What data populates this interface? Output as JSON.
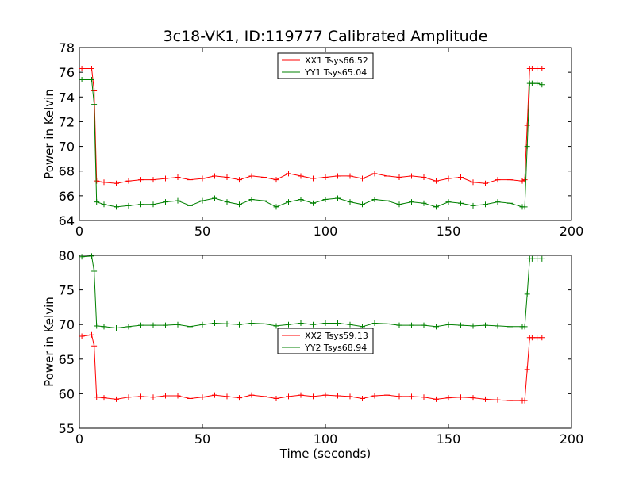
{
  "title": "3c18-VK1, ID:119777 Calibrated Amplitude",
  "colors": {
    "red": "#ff0000",
    "green": "#008000"
  },
  "chart_data": [
    {
      "type": "line",
      "ylabel": "Power in Kelvin",
      "xlabel": "",
      "xlim": [
        0,
        200
      ],
      "ylim": [
        64,
        78
      ],
      "xticks": [
        0,
        50,
        100,
        150,
        200
      ],
      "yticks": [
        64,
        66,
        68,
        70,
        72,
        74,
        76,
        78
      ],
      "legend_position": "top-center",
      "series": [
        {
          "name": "XX1 Tsys66.52",
          "color": "#ff0000",
          "x": [
            1,
            5,
            6,
            7,
            10,
            15,
            20,
            25,
            30,
            35,
            40,
            45,
            50,
            55,
            60,
            65,
            70,
            75,
            80,
            85,
            90,
            95,
            100,
            105,
            110,
            115,
            120,
            125,
            130,
            135,
            140,
            145,
            150,
            155,
            160,
            165,
            170,
            175,
            180,
            181,
            182,
            183,
            184,
            186,
            188
          ],
          "y": [
            76.3,
            76.3,
            74.5,
            67.2,
            67.1,
            67.0,
            67.2,
            67.3,
            67.3,
            67.4,
            67.5,
            67.3,
            67.4,
            67.6,
            67.5,
            67.3,
            67.6,
            67.5,
            67.3,
            67.8,
            67.6,
            67.4,
            67.5,
            67.6,
            67.6,
            67.4,
            67.8,
            67.6,
            67.5,
            67.6,
            67.5,
            67.2,
            67.4,
            67.5,
            67.1,
            67.0,
            67.3,
            67.3,
            67.2,
            67.3,
            71.7,
            76.3,
            76.3,
            76.3,
            76.3
          ]
        },
        {
          "name": "YY1 Tsys65.04",
          "color": "#008000",
          "x": [
            1,
            5,
            6,
            7,
            10,
            15,
            20,
            25,
            30,
            35,
            40,
            45,
            50,
            55,
            60,
            65,
            70,
            75,
            80,
            85,
            90,
            95,
            100,
            105,
            110,
            115,
            120,
            125,
            130,
            135,
            140,
            145,
            150,
            155,
            160,
            165,
            170,
            175,
            180,
            181,
            182,
            183,
            184,
            186,
            188
          ],
          "y": [
            75.4,
            75.4,
            73.4,
            65.5,
            65.3,
            65.1,
            65.2,
            65.3,
            65.3,
            65.5,
            65.6,
            65.2,
            65.6,
            65.8,
            65.5,
            65.3,
            65.7,
            65.6,
            65.1,
            65.5,
            65.7,
            65.4,
            65.7,
            65.8,
            65.5,
            65.3,
            65.7,
            65.6,
            65.3,
            65.5,
            65.4,
            65.1,
            65.5,
            65.4,
            65.2,
            65.3,
            65.5,
            65.4,
            65.1,
            65.1,
            70.0,
            75.1,
            75.1,
            75.1,
            75.0
          ]
        }
      ]
    },
    {
      "type": "line",
      "ylabel": "Power in Kelvin",
      "xlabel": "Time (seconds)",
      "xlim": [
        0,
        200
      ],
      "ylim": [
        55,
        80
      ],
      "xticks": [
        0,
        50,
        100,
        150,
        200
      ],
      "yticks": [
        55,
        60,
        65,
        70,
        75,
        80
      ],
      "legend_position": "center",
      "series": [
        {
          "name": "XX2 Tsys59.13",
          "color": "#ff0000",
          "x": [
            1,
            5,
            6,
            7,
            10,
            15,
            20,
            25,
            30,
            35,
            40,
            45,
            50,
            55,
            60,
            65,
            70,
            75,
            80,
            85,
            90,
            95,
            100,
            105,
            110,
            115,
            120,
            125,
            130,
            135,
            140,
            145,
            150,
            155,
            160,
            165,
            170,
            175,
            180,
            181,
            182,
            183,
            184,
            186,
            188
          ],
          "y": [
            68.3,
            68.5,
            66.9,
            59.5,
            59.4,
            59.2,
            59.5,
            59.6,
            59.5,
            59.7,
            59.7,
            59.3,
            59.5,
            59.8,
            59.6,
            59.4,
            59.8,
            59.6,
            59.3,
            59.6,
            59.8,
            59.6,
            59.8,
            59.7,
            59.6,
            59.3,
            59.7,
            59.8,
            59.6,
            59.6,
            59.5,
            59.2,
            59.4,
            59.5,
            59.4,
            59.2,
            59.1,
            59.0,
            59.0,
            59.0,
            63.5,
            68.1,
            68.1,
            68.1,
            68.1
          ]
        },
        {
          "name": "YY2 Tsys68.94",
          "color": "#008000",
          "x": [
            1,
            5,
            6,
            7,
            10,
            15,
            20,
            25,
            30,
            35,
            40,
            45,
            50,
            55,
            60,
            65,
            70,
            75,
            80,
            85,
            90,
            95,
            100,
            105,
            110,
            115,
            120,
            125,
            130,
            135,
            140,
            145,
            150,
            155,
            160,
            165,
            170,
            175,
            180,
            181,
            182,
            183,
            184,
            186,
            188
          ],
          "y": [
            79.8,
            79.9,
            77.7,
            69.8,
            69.7,
            69.5,
            69.7,
            69.9,
            69.9,
            69.9,
            70.0,
            69.7,
            70.0,
            70.2,
            70.1,
            70.0,
            70.2,
            70.1,
            69.8,
            70.0,
            70.2,
            70.0,
            70.2,
            70.2,
            70.0,
            69.7,
            70.2,
            70.1,
            69.9,
            69.9,
            69.9,
            69.7,
            70.0,
            69.9,
            69.8,
            69.9,
            69.8,
            69.7,
            69.7,
            69.7,
            74.4,
            79.5,
            79.5,
            79.5,
            79.5
          ]
        }
      ]
    }
  ]
}
